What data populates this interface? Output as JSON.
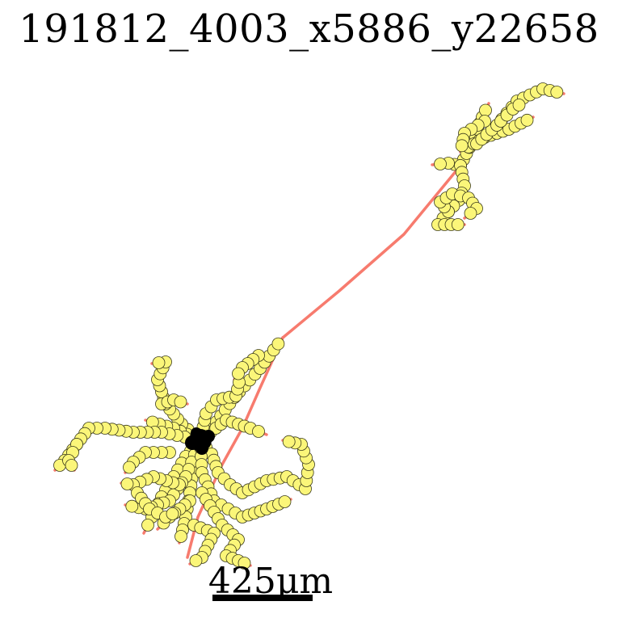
{
  "figure": {
    "title": "191812_4003_x5886_y22658",
    "scale_bar_label": "425μm"
  },
  "colors": {
    "path": "#f77b6e",
    "node_fill": "#fbf679",
    "node_stroke": "#3c3c1c",
    "soma": "#000000",
    "background": "#ffffff"
  }
}
